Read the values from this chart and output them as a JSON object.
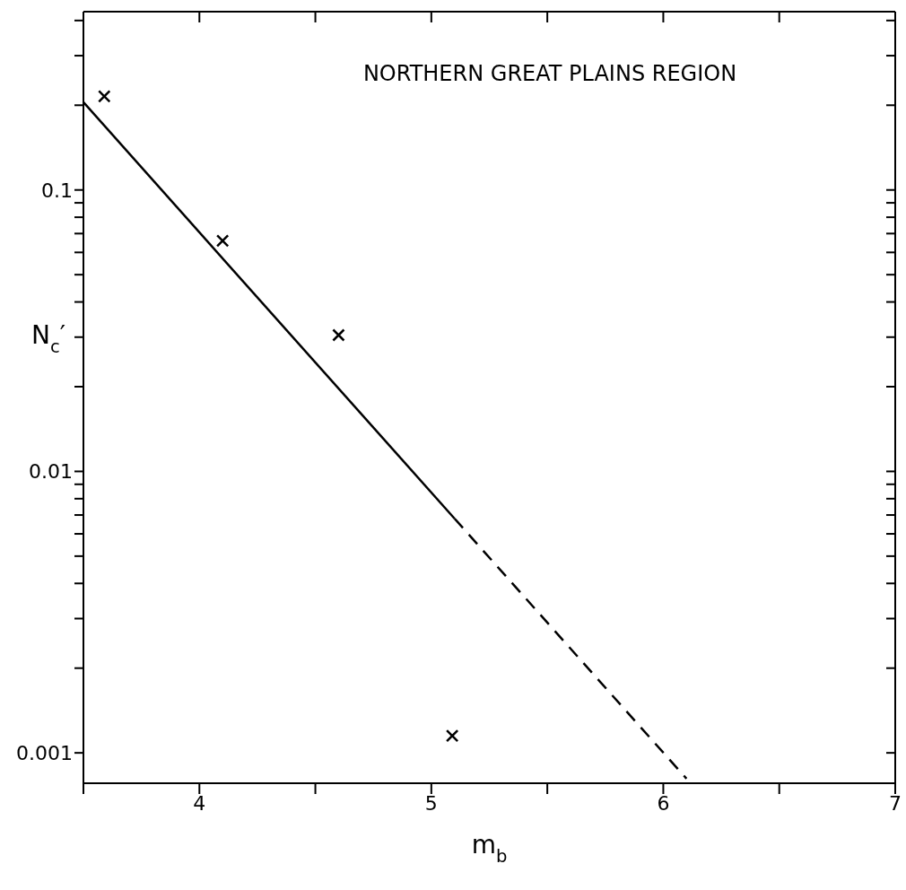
{
  "chart_data": {
    "type": "scatter",
    "xlabel": "m$_{b}$",
    "ylabel": "N$_{c}$′",
    "annotations": [
      "NORTHERN GREAT PLAINS REGION"
    ],
    "log": "y",
    "grid": false,
    "legend": false,
    "marker": "cross",
    "xlim": [
      3.5,
      7
    ],
    "xticks": [
      {
        "value": 3.5,
        "label": null
      },
      4,
      {
        "value": 4.5,
        "label": null
      },
      5,
      {
        "value": 5.5,
        "label": null
      },
      6,
      {
        "value": 6.5,
        "label": null
      },
      7
    ],
    "ylim": [
      0.00078,
      0.43
    ],
    "yticks": [
      0.001,
      {
        "value": 0.002,
        "label": null
      },
      {
        "value": 0.003,
        "label": null
      },
      {
        "value": 0.004,
        "label": null
      },
      {
        "value": 0.005,
        "label": null
      },
      {
        "value": 0.006,
        "label": null
      },
      {
        "value": 0.007,
        "label": null
      },
      {
        "value": 0.008,
        "label": null
      },
      {
        "value": 0.009,
        "label": null
      },
      0.01,
      {
        "value": 0.02,
        "label": null
      },
      {
        "value": 0.03,
        "label": null
      },
      {
        "value": 0.04,
        "label": null
      },
      {
        "value": 0.05,
        "label": null
      },
      {
        "value": 0.06,
        "label": null
      },
      {
        "value": 0.07,
        "label": null
      },
      {
        "value": 0.08,
        "label": null
      },
      {
        "value": 0.09,
        "label": null
      },
      0.1,
      {
        "value": 0.2,
        "label": null
      },
      {
        "value": 0.3,
        "label": null
      },
      {
        "value": 0.4,
        "label": null
      }
    ],
    "series": [
      {
        "color": "#000000",
        "x": [
          3.59,
          4.1,
          4.6,
          5.09
        ],
        "values": [
          0.215,
          0.066,
          0.0305,
          0.00115
        ]
      },
      {
        "type": "line",
        "color": "#000000",
        "line_style": "solid",
        "marker": "none",
        "x": [
          3.5,
          5.1
        ],
        "values": [
          0.205,
          0.0068
        ]
      },
      {
        "type": "line",
        "color": "#000000",
        "line_style": "dashed",
        "marker": "none",
        "x": [
          5.1,
          6.1
        ],
        "values": [
          0.0068,
          0.00081
        ]
      }
    ]
  }
}
